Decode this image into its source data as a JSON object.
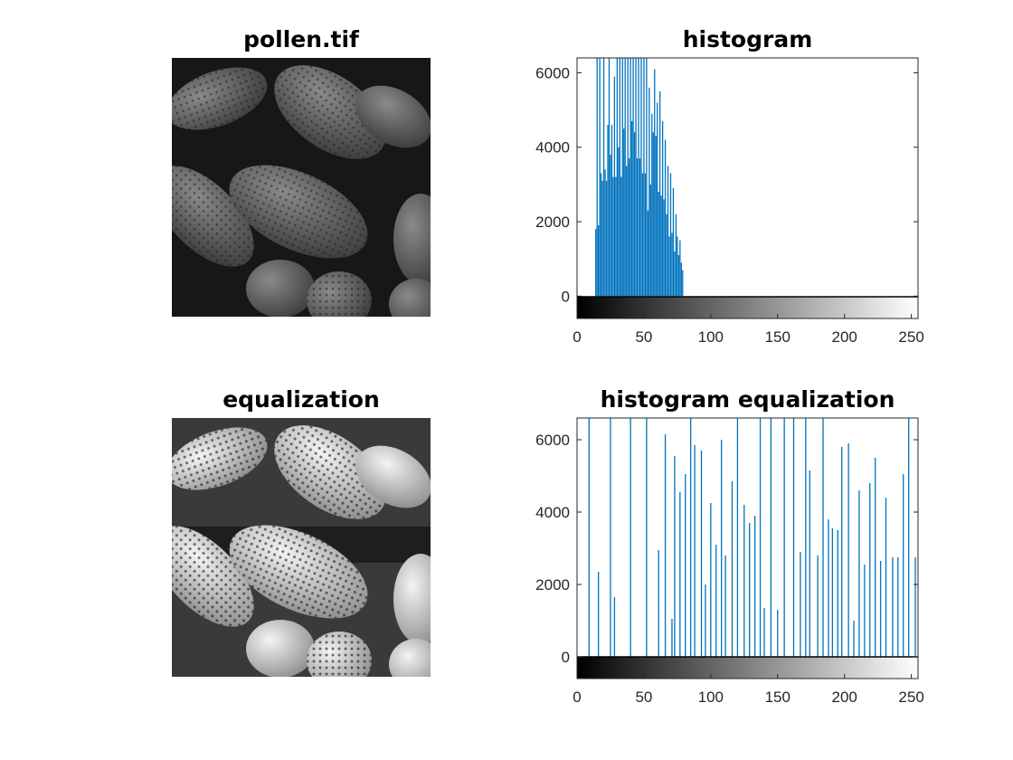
{
  "figure": {
    "panels": [
      {
        "title": "pollen.tif"
      },
      {
        "title": "histogram"
      },
      {
        "title": "equalization"
      },
      {
        "title": "histogram equalization"
      }
    ],
    "images": [
      {
        "caption": "pollen micrograph (low contrast, dark)"
      },
      {
        "caption": "pollen micrograph (histogram equalized, high contrast)"
      }
    ]
  },
  "chart_data": [
    {
      "type": "bar",
      "title": "histogram",
      "xlabel": "",
      "ylabel": "",
      "xlim": [
        0,
        255
      ],
      "ylim": [
        -600,
        6400
      ],
      "xticks": [
        0,
        50,
        100,
        150,
        200,
        250
      ],
      "yticks": [
        0,
        2000,
        4000,
        6000
      ],
      "grid": false,
      "bar_color": "#0072BD",
      "x": [
        14,
        15,
        16,
        17,
        18,
        19,
        20,
        21,
        22,
        23,
        24,
        25,
        26,
        27,
        28,
        29,
        30,
        31,
        32,
        33,
        34,
        35,
        36,
        37,
        38,
        39,
        40,
        41,
        42,
        43,
        44,
        45,
        46,
        47,
        48,
        49,
        50,
        51,
        52,
        53,
        54,
        55,
        56,
        57,
        58,
        59,
        60,
        61,
        62,
        63,
        64,
        65,
        66,
        67,
        68,
        69,
        70,
        71,
        72,
        73,
        74,
        75,
        76,
        77,
        78,
        79
      ],
      "values": [
        1800,
        6500,
        1900,
        6500,
        3300,
        3100,
        6500,
        3400,
        3100,
        4600,
        6500,
        3800,
        4600,
        3200,
        5900,
        3200,
        6500,
        4000,
        6500,
        3200,
        6500,
        4500,
        6500,
        3500,
        6500,
        3700,
        6500,
        4700,
        6500,
        4400,
        6500,
        3700,
        6500,
        3700,
        6500,
        3300,
        6500,
        3300,
        6500,
        2300,
        5600,
        3000,
        4900,
        4400,
        6100,
        4300,
        5200,
        2800,
        5500,
        2700,
        4700,
        2600,
        4200,
        2200,
        3500,
        1600,
        3300,
        1700,
        2900,
        1200,
        2200,
        1600,
        1100,
        1500,
        900,
        700
      ]
    },
    {
      "type": "bar",
      "title": "histogram equalization",
      "xlabel": "",
      "ylabel": "",
      "xlim": [
        0,
        255
      ],
      "ylim": [
        -600,
        6600
      ],
      "xticks": [
        0,
        50,
        100,
        150,
        200,
        250
      ],
      "yticks": [
        0,
        2000,
        4000,
        6000
      ],
      "grid": false,
      "bar_color": "#0072BD",
      "x": [
        9,
        16,
        25,
        28,
        40,
        52,
        61,
        66,
        71,
        73,
        77,
        81,
        85,
        88,
        93,
        96,
        100,
        104,
        108,
        111,
        116,
        120,
        125,
        129,
        133,
        137,
        140,
        145,
        150,
        155,
        162,
        167,
        171,
        174,
        180,
        184,
        188,
        191,
        195,
        198,
        203,
        207,
        211,
        215,
        219,
        223,
        227,
        231,
        236,
        240,
        244,
        248,
        253
      ],
      "values": [
        6600,
        2350,
        6600,
        1650,
        6600,
        6600,
        2950,
        6150,
        1050,
        5550,
        4550,
        5050,
        6600,
        5850,
        5700,
        2000,
        4250,
        3100,
        6000,
        2800,
        4850,
        6600,
        4200,
        3700,
        3900,
        6600,
        1350,
        6600,
        1300,
        6600,
        6600,
        2900,
        6600,
        5150,
        2800,
        6600,
        3800,
        3550,
        3500,
        5800,
        5900,
        1000,
        4600,
        2550,
        4800,
        5500,
        2650,
        4400,
        2750,
        2750,
        5050,
        6600,
        2750
      ]
    }
  ]
}
